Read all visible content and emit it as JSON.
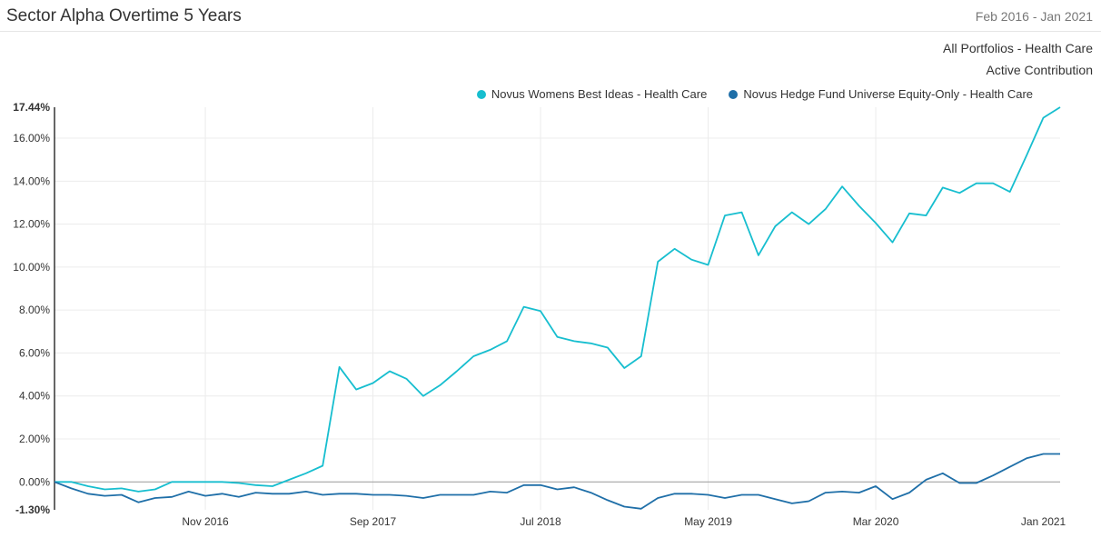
{
  "header": {
    "title": "Sector Alpha Overtime 5 Years",
    "date_range": "Feb 2016 - Jan 2021"
  },
  "subtitle": {
    "line1": "All Portfolios - Health Care",
    "line2": "Active Contribution"
  },
  "chart_data": {
    "type": "line",
    "title": "Sector Alpha Overtime 5 Years",
    "subtitle": [
      "All Portfolios - Health Care",
      "Active Contribution"
    ],
    "xlabel": "",
    "ylabel": "",
    "x_start": "Feb 2016",
    "x_end": "Jan 2021",
    "x_tick_labels": [
      "Nov 2016",
      "Sep 2017",
      "Jul 2018",
      "May 2019",
      "Mar 2020",
      "Jan 2021"
    ],
    "ylim": [
      -1.3,
      17.44
    ],
    "y_tick_labels": [
      "-1.30%",
      "0.00%",
      "2.00%",
      "4.00%",
      "6.00%",
      "8.00%",
      "10.00%",
      "12.00%",
      "14.00%",
      "16.00%",
      "17.44%"
    ],
    "y_ticks": [
      -1.3,
      0,
      2,
      4,
      6,
      8,
      10,
      12,
      14,
      16,
      17.44
    ],
    "grid": true,
    "legend_position": "top-right",
    "series": [
      {
        "name": "Novus Womens Best Ideas - Health Care",
        "color": "#17becf",
        "values": [
          0.0,
          0.0,
          -0.2,
          -0.35,
          -0.3,
          -0.45,
          -0.35,
          0.0,
          0.0,
          0.0,
          0.0,
          -0.05,
          -0.15,
          -0.2,
          0.1,
          0.4,
          0.75,
          5.35,
          4.3,
          4.6,
          5.15,
          4.8,
          4.0,
          4.5,
          5.15,
          5.85,
          6.15,
          6.55,
          8.15,
          7.95,
          6.75,
          6.55,
          6.45,
          6.25,
          5.3,
          5.85,
          10.25,
          10.85,
          10.35,
          10.1,
          12.4,
          12.55,
          10.55,
          11.9,
          12.55,
          12.0,
          12.7,
          13.75,
          12.85,
          12.05,
          11.15,
          12.5,
          12.4,
          13.7,
          13.45,
          13.9,
          13.9,
          13.5,
          15.2,
          16.95,
          17.44
        ]
      },
      {
        "name": "Novus Hedge Fund Universe Equity-Only - Health Care",
        "color": "#1f6fa8",
        "values": [
          0.0,
          -0.3,
          -0.55,
          -0.65,
          -0.6,
          -0.95,
          -0.75,
          -0.7,
          -0.45,
          -0.65,
          -0.55,
          -0.7,
          -0.5,
          -0.55,
          -0.55,
          -0.45,
          -0.6,
          -0.55,
          -0.55,
          -0.6,
          -0.6,
          -0.65,
          -0.75,
          -0.6,
          -0.6,
          -0.6,
          -0.45,
          -0.5,
          -0.15,
          -0.15,
          -0.35,
          -0.25,
          -0.5,
          -0.85,
          -1.15,
          -1.25,
          -0.75,
          -0.55,
          -0.55,
          -0.6,
          -0.75,
          -0.6,
          -0.6,
          -0.8,
          -1.0,
          -0.9,
          -0.5,
          -0.45,
          -0.5,
          -0.2,
          -0.8,
          -0.5,
          0.1,
          0.4,
          -0.05,
          -0.05,
          0.3,
          0.7,
          1.1,
          1.3,
          1.3
        ]
      }
    ],
    "zero_line": true
  }
}
